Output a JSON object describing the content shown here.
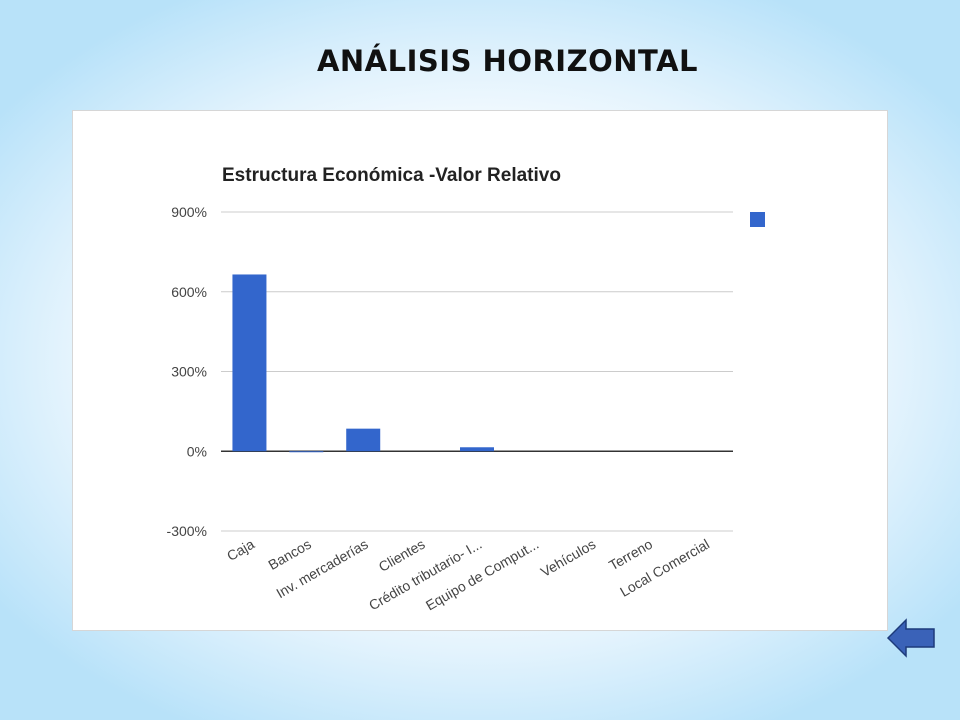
{
  "slide": {
    "title": "ANÁLISIS HORIZONTAL"
  },
  "colors": {
    "bar": "#3366CC",
    "grid": "#CCCCCC",
    "zero_line": "#333333",
    "back_arrow": "#3A62B8"
  },
  "icons": {
    "back": "left-arrow-icon"
  },
  "chart_data": {
    "type": "bar",
    "title": "Estructura Económica -Valor Relativo",
    "categories": [
      "Caja",
      "Bancos",
      "Inv. mercaderías",
      "Clientes",
      "Crédito tributario- I...",
      "Equipo de Comput...",
      "Vehículos",
      "Terreno",
      "Local Comercial"
    ],
    "series": [
      {
        "values": [
          665,
          -3,
          85,
          0,
          15,
          0,
          0,
          0,
          0
        ]
      }
    ],
    "ylim": [
      -300,
      900
    ],
    "yticks": [
      900,
      600,
      300,
      0,
      -300
    ],
    "ytick_labels": [
      "900%",
      "600%",
      "300%",
      "0%",
      "-300%"
    ],
    "grid": true,
    "legend": "right",
    "xlabel": "",
    "ylabel": ""
  }
}
